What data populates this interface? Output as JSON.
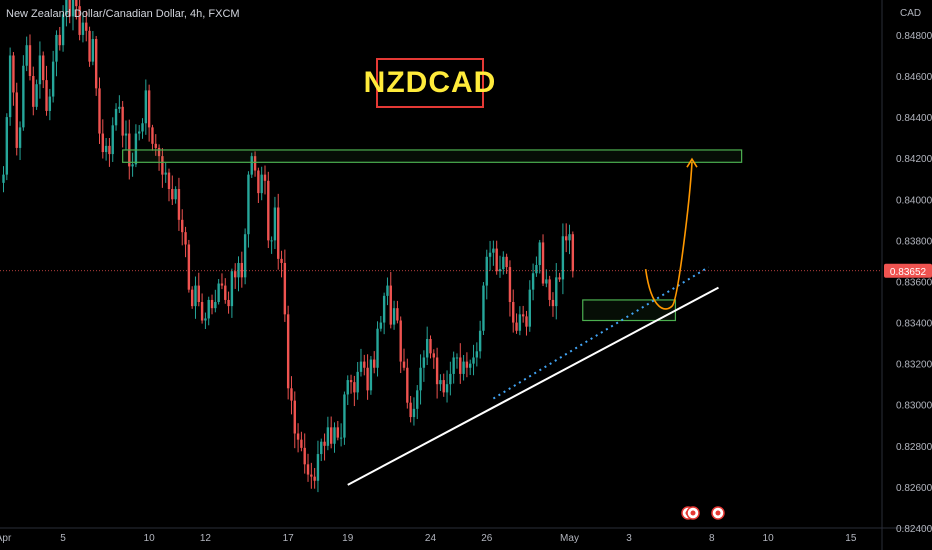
{
  "header": {
    "title": "New Zealand Dollar/Canadian Dollar, 4h, FXCM"
  },
  "badge": {
    "symbol": "NZDCAD"
  },
  "colors": {
    "up": "#26a69a",
    "down": "#ef5350",
    "zone": "#4caf50",
    "projection": "#ff9800",
    "trendline": "#ffffff",
    "dotted": "#42a5f5"
  },
  "chart_data": {
    "type": "candlestick",
    "currency": "CAD",
    "ylim": [
      0.824,
      0.8497
    ],
    "y_ticks": [
      "0.84800",
      "0.84600",
      "0.84400",
      "0.84200",
      "0.84000",
      "0.83800",
      "0.83600",
      "0.83400",
      "0.83200",
      "0.83000",
      "0.82800",
      "0.82600",
      "0.82400"
    ],
    "x_ticks": [
      {
        "label": "Apr",
        "i": 0
      },
      {
        "label": "5",
        "i": 18
      },
      {
        "label": "10",
        "i": 44
      },
      {
        "label": "12",
        "i": 61
      },
      {
        "label": "17",
        "i": 86
      },
      {
        "label": "19",
        "i": 104
      },
      {
        "label": "24",
        "i": 129
      },
      {
        "label": "26",
        "i": 146
      },
      {
        "label": "May",
        "i": 171
      },
      {
        "label": "3",
        "i": 189
      },
      {
        "label": "8",
        "i": 214
      },
      {
        "label": "10",
        "i": 231
      },
      {
        "label": "15",
        "i": 256
      }
    ],
    "last_price": "0.83652",
    "closes": [
      0.8412,
      0.844,
      0.847,
      0.8452,
      0.8425,
      0.8435,
      0.8465,
      0.8475,
      0.846,
      0.8445,
      0.8456,
      0.847,
      0.8458,
      0.8443,
      0.845,
      0.8467,
      0.848,
      0.8475,
      0.849,
      0.8502,
      0.8489,
      0.8497,
      0.8494,
      0.848,
      0.8486,
      0.8482,
      0.8467,
      0.8478,
      0.8454,
      0.8432,
      0.8423,
      0.8426,
      0.8422,
      0.8436,
      0.8444,
      0.8445,
      0.8431,
      0.8432,
      0.8416,
      0.8417,
      0.8432,
      0.8433,
      0.8437,
      0.8453,
      0.8435,
      0.8427,
      0.8425,
      0.8421,
      0.8412,
      0.8413,
      0.8405,
      0.84,
      0.8405,
      0.839,
      0.8384,
      0.8378,
      0.8356,
      0.8348,
      0.8358,
      0.835,
      0.8341,
      0.8342,
      0.8351,
      0.8347,
      0.835,
      0.8359,
      0.8358,
      0.8351,
      0.8348,
      0.8365,
      0.8362,
      0.8369,
      0.8362,
      0.8383,
      0.8412,
      0.8421,
      0.8414,
      0.8403,
      0.8412,
      0.8409,
      0.838,
      0.838,
      0.8396,
      0.8371,
      0.8369,
      0.8344,
      0.8308,
      0.8302,
      0.8286,
      0.8283,
      0.8279,
      0.8271,
      0.8266,
      0.8265,
      0.8263,
      0.8276,
      0.8282,
      0.828,
      0.8289,
      0.8281,
      0.8289,
      0.8284,
      0.8284,
      0.8305,
      0.8312,
      0.8311,
      0.8306,
      0.8316,
      0.8321,
      0.8318,
      0.8307,
      0.8322,
      0.8318,
      0.8337,
      0.834,
      0.8353,
      0.8358,
      0.8339,
      0.8347,
      0.8341,
      0.8321,
      0.8318,
      0.8301,
      0.8294,
      0.8298,
      0.8307,
      0.8318,
      0.8323,
      0.8332,
      0.8325,
      0.8323,
      0.831,
      0.8312,
      0.8306,
      0.831,
      0.8315,
      0.8323,
      0.8323,
      0.8315,
      0.8321,
      0.8318,
      0.832,
      0.8323,
      0.8326,
      0.8336,
      0.8358,
      0.8372,
      0.8374,
      0.8376,
      0.8365,
      0.8366,
      0.8372,
      0.8367,
      0.835,
      0.834,
      0.8336,
      0.8344,
      0.8343,
      0.8338,
      0.8356,
      0.8364,
      0.8368,
      0.8379,
      0.8359,
      0.8361,
      0.8351,
      0.8348,
      0.8362,
      0.8361,
      0.8382,
      0.838,
      0.8383,
      0.8365
    ],
    "annotations": {
      "resistance_zone": {
        "i0": 36,
        "i1": 223,
        "price_top": 0.8424,
        "price_bottom": 0.8418
      },
      "support_zone": {
        "i0": 175,
        "i1": 203,
        "price_top": 0.8351,
        "price_bottom": 0.8341
      },
      "trendline": {
        "i0": 104,
        "p0": 0.8261,
        "i1": 216,
        "p1": 0.8357
      },
      "dotted_line": {
        "i0": 148,
        "p0": 0.8303,
        "i1": 213,
        "p1": 0.8367
      },
      "projection": {
        "start_i": 194,
        "start_p": 0.8366,
        "low_i": 202,
        "low_p": 0.8348,
        "end_i": 208,
        "end_p": 0.842
      }
    }
  }
}
